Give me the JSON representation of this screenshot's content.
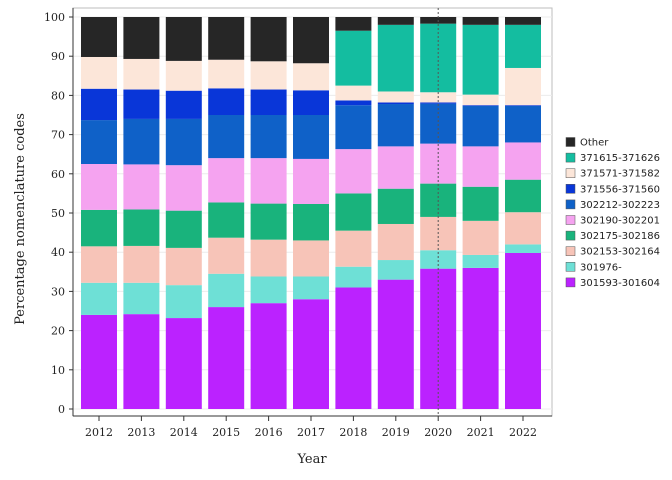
{
  "chart_data": {
    "type": "bar",
    "stacked": true,
    "xlabel": "Year",
    "ylabel": "Percentage nomenclature codes",
    "ylim": [
      0,
      100
    ],
    "yticks": [
      0,
      10,
      20,
      30,
      40,
      50,
      60,
      70,
      80,
      90,
      100
    ],
    "categories": [
      "2012",
      "2013",
      "2014",
      "2015",
      "2016",
      "2017",
      "2018",
      "2019",
      "2020",
      "2021",
      "2022"
    ],
    "reference_line": {
      "x": "2020",
      "style": "dotted"
    },
    "legend_position": "right",
    "series": [
      {
        "name": "301593-301604",
        "color": "#BB22FF",
        "values": [
          24.0,
          24.2,
          23.2,
          26.0,
          27.0,
          28.0,
          31.0,
          33.0,
          35.8,
          36.0,
          39.8
        ]
      },
      {
        "name": "301976-",
        "color": "#6EE0D6",
        "values": [
          8.2,
          8.0,
          8.4,
          8.5,
          6.8,
          5.8,
          5.3,
          5.0,
          4.7,
          3.3,
          2.2
        ]
      },
      {
        "name": "302153-302164",
        "color": "#F7C4B8",
        "values": [
          9.3,
          9.4,
          9.5,
          9.2,
          9.4,
          9.2,
          9.2,
          9.2,
          8.5,
          8.7,
          8.2
        ]
      },
      {
        "name": "302175-302186",
        "color": "#19B37C",
        "values": [
          9.3,
          9.3,
          9.5,
          9.0,
          9.2,
          9.3,
          9.5,
          9.0,
          8.5,
          8.7,
          8.3
        ]
      },
      {
        "name": "302190-302201",
        "color": "#F5A3F0",
        "values": [
          11.7,
          11.5,
          11.6,
          11.3,
          11.6,
          11.5,
          11.3,
          10.8,
          10.2,
          10.3,
          9.5
        ]
      },
      {
        "name": "302212-302223",
        "color": "#0F61C8",
        "values": [
          11.2,
          11.6,
          11.8,
          11.0,
          11.0,
          11.2,
          11.2,
          10.8,
          10.2,
          10.3,
          9.3
        ]
      },
      {
        "name": "371556-371560",
        "color": "#0936D8",
        "values": [
          8.0,
          7.5,
          7.2,
          6.8,
          6.5,
          6.3,
          1.2,
          0.4,
          0.3,
          0.2,
          0.2
        ]
      },
      {
        "name": "371571-371582",
        "color": "#FCE6D9",
        "values": [
          8.1,
          7.8,
          7.6,
          7.3,
          7.2,
          6.9,
          3.8,
          2.8,
          2.6,
          2.7,
          9.5
        ]
      },
      {
        "name": "371615-371626",
        "color": "#14BDA0",
        "values": [
          0.0,
          0.0,
          0.0,
          0.0,
          0.0,
          0.0,
          14.0,
          17.0,
          17.5,
          17.8,
          11.0
        ]
      },
      {
        "name": "Other",
        "color": "#262626",
        "values": [
          10.2,
          10.7,
          11.2,
          10.9,
          11.3,
          11.8,
          3.5,
          2.0,
          1.7,
          2.0,
          2.0
        ]
      }
    ]
  }
}
